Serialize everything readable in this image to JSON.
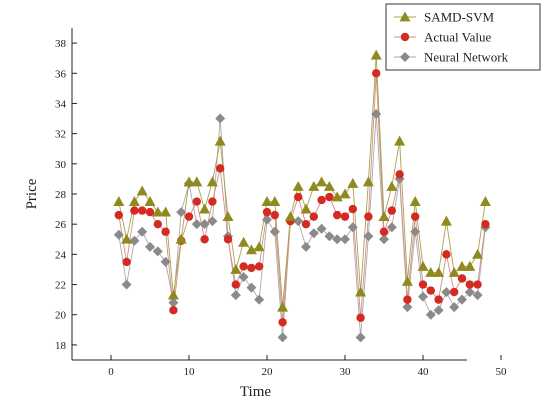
{
  "chart_data": {
    "type": "line",
    "xlabel": "Time",
    "ylabel": "Price",
    "xlim": [
      -5,
      55
    ],
    "ylim": [
      17,
      39
    ],
    "xticks": [
      0,
      10,
      20,
      30,
      40,
      50
    ],
    "yticks": [
      18,
      20,
      22,
      24,
      26,
      28,
      30,
      32,
      34,
      36,
      38
    ],
    "grid": false,
    "legend_position": "top-right",
    "x": [
      1,
      2,
      3,
      4,
      5,
      6,
      7,
      8,
      9,
      10,
      11,
      12,
      13,
      14,
      15,
      16,
      17,
      18,
      19,
      20,
      21,
      22,
      23,
      24,
      25,
      26,
      27,
      28,
      29,
      30,
      31,
      32,
      33,
      34,
      35,
      36,
      37,
      38,
      39,
      40,
      41,
      42,
      43,
      44,
      45,
      46,
      47,
      48
    ],
    "series": [
      {
        "name": "SAMD-SVM",
        "marker": "triangle",
        "color": "#8f8a1e",
        "line_color": "#a6a24a",
        "values": [
          27.5,
          25.0,
          27.5,
          28.2,
          27.5,
          26.8,
          26.8,
          21.3,
          25.0,
          28.8,
          28.8,
          27.0,
          28.8,
          31.5,
          26.5,
          23.0,
          24.8,
          24.3,
          24.5,
          27.5,
          27.5,
          20.5,
          26.5,
          28.5,
          27.0,
          28.5,
          28.8,
          28.5,
          27.8,
          28.0,
          28.7,
          21.5,
          28.8,
          37.2,
          26.5,
          28.5,
          31.5,
          22.2,
          27.5,
          23.2,
          22.8,
          22.8,
          26.2,
          22.8,
          23.2,
          23.2,
          24.0,
          27.5
        ]
      },
      {
        "name": "Actual Value",
        "marker": "circle",
        "color": "#d42a22",
        "line_color": "#d98a86",
        "values": [
          26.6,
          23.5,
          26.9,
          26.9,
          26.8,
          26.0,
          25.5,
          20.3,
          24.9,
          26.5,
          27.5,
          25.0,
          27.5,
          29.7,
          25.0,
          22.0,
          23.2,
          23.1,
          23.2,
          26.8,
          26.6,
          19.5,
          26.2,
          27.8,
          26.0,
          26.5,
          27.6,
          27.8,
          26.6,
          26.5,
          27.0,
          19.8,
          26.5,
          36.0,
          25.5,
          26.9,
          29.3,
          21.0,
          26.5,
          22.0,
          21.6,
          21.0,
          24.0,
          21.5,
          22.4,
          22.0,
          22.0,
          26.0
        ]
      },
      {
        "name": "Neural Network",
        "marker": "diamond",
        "color": "#8a8a8a",
        "line_color": "#a9a9a9",
        "values": [
          25.3,
          22.0,
          24.9,
          25.5,
          24.5,
          24.2,
          23.5,
          20.8,
          26.8,
          28.7,
          26.0,
          26.0,
          26.2,
          33.0,
          25.2,
          21.3,
          22.5,
          21.8,
          21.0,
          26.3,
          25.5,
          18.5,
          26.2,
          26.2,
          24.5,
          25.4,
          25.7,
          25.2,
          25.0,
          25.0,
          25.8,
          18.5,
          25.2,
          33.3,
          25.0,
          25.8,
          29.0,
          20.5,
          25.5,
          21.2,
          20.0,
          20.3,
          21.5,
          20.5,
          21.0,
          21.5,
          21.3,
          25.8
        ]
      }
    ]
  }
}
